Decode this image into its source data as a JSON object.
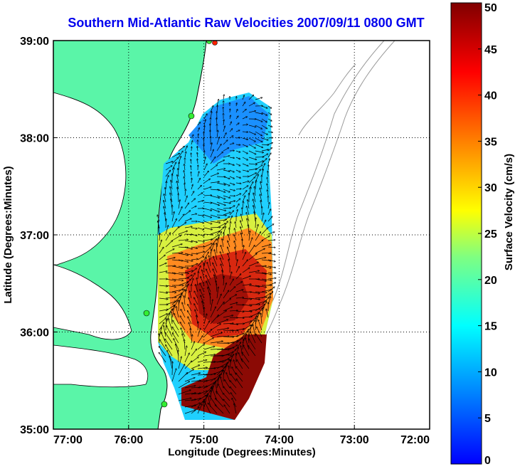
{
  "chart_data": {
    "type": "heatmap",
    "title": "Southern Mid-Atlantic Raw Velocities 2007/09/11 0800 GMT",
    "xlabel": "Longitude (Degrees:Minutes)",
    "ylabel": "Latitude (Degrees:Minutes)",
    "x_ticks": [
      "77:00",
      "76:00",
      "75:00",
      "74:00",
      "73:00",
      "72:00"
    ],
    "x_tick_values": [
      -77,
      -76,
      -75,
      -74,
      -73,
      -72
    ],
    "y_ticks": [
      "39:00",
      "38:00",
      "37:00",
      "36:00",
      "35:00"
    ],
    "y_tick_values": [
      39,
      38,
      37,
      36,
      35
    ],
    "xlim": [
      -77,
      -72
    ],
    "ylim": [
      35,
      39
    ],
    "grid": true,
    "colorbar": {
      "label": "Surface Velocity (cm/s)",
      "range": [
        0,
        50
      ],
      "ticks": [
        "0",
        "5",
        "10",
        "15",
        "20",
        "25",
        "30",
        "35",
        "40",
        "45",
        "50"
      ],
      "tick_values": [
        0,
        5,
        10,
        15,
        20,
        25,
        30,
        35,
        40,
        45,
        50
      ]
    },
    "colors": {
      "land": "#5af5a8",
      "water": "#ffffff",
      "coastline": "#000000",
      "bathymetry": "#9a9a9a",
      "arrows": "#000000",
      "stations": "#33ee33",
      "station_alert": "#ff2200"
    },
    "velocity_samples": [
      {
        "lon": -74.8,
        "lat": 38.3,
        "speed": 5
      },
      {
        "lon": -74.6,
        "lat": 38.1,
        "speed": 8
      },
      {
        "lon": -75.1,
        "lat": 37.9,
        "speed": 10
      },
      {
        "lon": -74.9,
        "lat": 37.6,
        "speed": 15
      },
      {
        "lon": -74.4,
        "lat": 37.4,
        "speed": 22
      },
      {
        "lon": -75.4,
        "lat": 37.2,
        "speed": 14
      },
      {
        "lon": -75.2,
        "lat": 36.9,
        "speed": 25
      },
      {
        "lon": -74.5,
        "lat": 36.8,
        "speed": 38
      },
      {
        "lon": -74.9,
        "lat": 36.4,
        "speed": 45
      },
      {
        "lon": -75.3,
        "lat": 36.1,
        "speed": 32
      },
      {
        "lon": -74.4,
        "lat": 36.2,
        "speed": 30
      },
      {
        "lon": -74.8,
        "lat": 35.8,
        "speed": 20
      },
      {
        "lon": -74.4,
        "lat": 35.6,
        "speed": 50
      },
      {
        "lon": -74.9,
        "lat": 35.3,
        "speed": 50
      }
    ]
  }
}
